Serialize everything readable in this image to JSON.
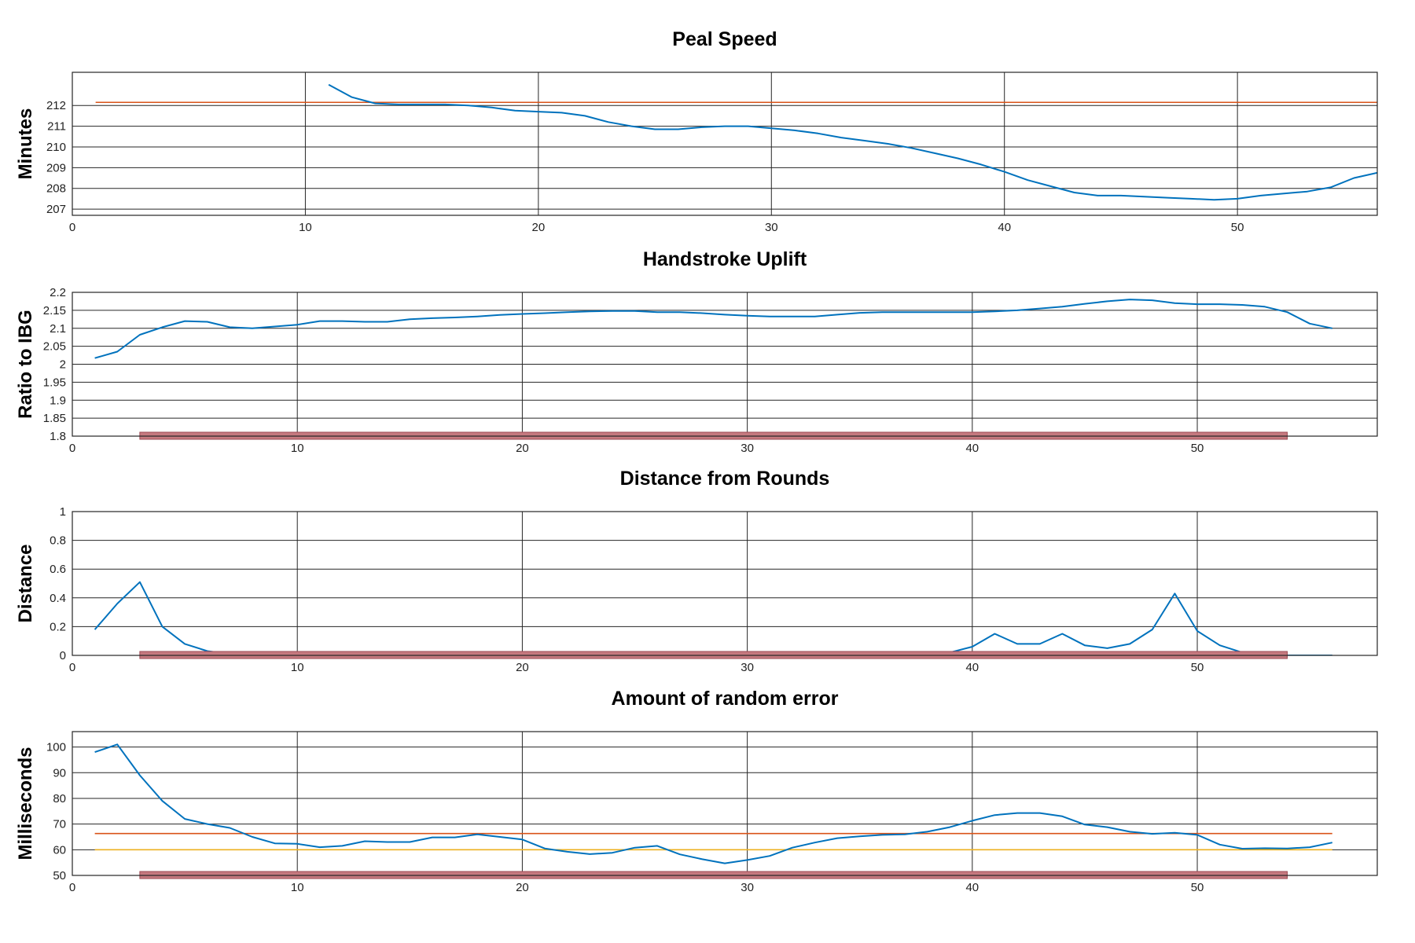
{
  "chart_data": [
    {
      "type": "line",
      "title": "Peal Speed",
      "xlabel": "",
      "ylabel": "Minutes",
      "xlim": [
        0,
        56
      ],
      "ylim": [
        206.7,
        213.6
      ],
      "xticks": [
        0,
        10,
        20,
        30,
        40,
        50
      ],
      "yticks": [
        207,
        208,
        209,
        210,
        211,
        212
      ],
      "xtick_labels": [
        "0",
        "10",
        "20",
        "30",
        "40",
        "50"
      ],
      "ytick_labels": [
        "207",
        "208",
        "209",
        "210",
        "211",
        "212"
      ],
      "grid": true,
      "colors": {
        "series": "#0072BD",
        "reference": "#D95319"
      },
      "reference_lines": [
        {
          "y": 212.15,
          "x": [
            1,
            56
          ],
          "color": "#D95319"
        }
      ],
      "series": [
        {
          "x": [
            11,
            12,
            13,
            14,
            15,
            16,
            17,
            18,
            19,
            20,
            21,
            22,
            23,
            24,
            25,
            26,
            27,
            28,
            29,
            30,
            31,
            32,
            33,
            34,
            35,
            36,
            37,
            38,
            39,
            40,
            41,
            42,
            43,
            44,
            45,
            46,
            47,
            48,
            49,
            50,
            51,
            52,
            53,
            54,
            55,
            56
          ],
          "y": [
            213.0,
            212.4,
            212.1,
            212.05,
            212.05,
            212.05,
            212.0,
            211.9,
            211.75,
            211.7,
            211.65,
            211.5,
            211.2,
            211.0,
            210.85,
            210.85,
            210.95,
            211.0,
            211.0,
            210.9,
            210.8,
            210.65,
            210.45,
            210.3,
            210.15,
            209.95,
            209.7,
            209.45,
            209.15,
            208.8,
            208.4,
            208.1,
            207.8,
            207.65,
            207.65,
            207.6,
            207.55,
            207.5,
            207.45,
            207.5,
            207.65,
            207.75,
            207.85,
            208.05,
            208.5,
            208.75
          ],
          "color": "#0072BD"
        }
      ]
    },
    {
      "type": "line",
      "title": "Handstroke Uplift",
      "xlabel": "",
      "ylabel": "Ratio to IBG",
      "xlim": [
        0,
        58
      ],
      "ylim": [
        1.8,
        2.2
      ],
      "xticks": [
        0,
        10,
        20,
        30,
        40,
        50
      ],
      "yticks": [
        1.8,
        1.85,
        1.9,
        1.95,
        2,
        2.05,
        2.1,
        2.15,
        2.2
      ],
      "xtick_labels": [
        "0",
        "10",
        "20",
        "30",
        "40",
        "50"
      ],
      "ytick_labels": [
        "1.8",
        "1.85",
        "1.9",
        "1.95",
        "2",
        "2.05",
        "2.1",
        "2.15",
        "2.2"
      ],
      "grid": true,
      "colors": {
        "series": "#0072BD",
        "baseline_bar": "#C5797F"
      },
      "baseline_bar": {
        "x": [
          3,
          54
        ],
        "color": "#C5797F"
      },
      "series": [
        {
          "x": [
            1,
            2,
            3,
            4,
            5,
            6,
            7,
            8,
            9,
            10,
            11,
            12,
            13,
            14,
            15,
            16,
            17,
            18,
            19,
            20,
            21,
            22,
            23,
            24,
            25,
            26,
            27,
            28,
            29,
            30,
            31,
            32,
            33,
            34,
            35,
            36,
            37,
            38,
            39,
            40,
            41,
            42,
            43,
            44,
            45,
            46,
            47,
            48,
            49,
            50,
            51,
            52,
            53,
            54,
            55,
            56
          ],
          "y": [
            2.017,
            2.035,
            2.082,
            2.103,
            2.12,
            2.118,
            2.103,
            2.1,
            2.105,
            2.11,
            2.12,
            2.12,
            2.118,
            2.118,
            2.125,
            2.128,
            2.13,
            2.133,
            2.137,
            2.14,
            2.142,
            2.145,
            2.147,
            2.148,
            2.148,
            2.145,
            2.145,
            2.142,
            2.138,
            2.135,
            2.133,
            2.133,
            2.133,
            2.138,
            2.143,
            2.145,
            2.145,
            2.145,
            2.145,
            2.145,
            2.147,
            2.15,
            2.155,
            2.16,
            2.168,
            2.175,
            2.18,
            2.178,
            2.17,
            2.167,
            2.167,
            2.165,
            2.16,
            2.145,
            2.113,
            2.1
          ],
          "color": "#0072BD"
        }
      ]
    },
    {
      "type": "line",
      "title": "Distance from Rounds",
      "xlabel": "",
      "ylabel": "Distance",
      "xlim": [
        0,
        58
      ],
      "ylim": [
        0,
        1
      ],
      "xticks": [
        0,
        10,
        20,
        30,
        40,
        50
      ],
      "yticks": [
        0,
        0.2,
        0.4,
        0.6,
        0.8,
        1
      ],
      "xtick_labels": [
        "0",
        "10",
        "20",
        "30",
        "40",
        "50"
      ],
      "ytick_labels": [
        "0",
        "0.2",
        "0.4",
        "0.6",
        "0.8",
        "1"
      ],
      "grid": true,
      "colors": {
        "series": "#0072BD",
        "baseline_bar": "#C5797F"
      },
      "baseline_bar": {
        "x": [
          3,
          54
        ],
        "color": "#C5797F"
      },
      "series": [
        {
          "x": [
            1,
            2,
            3,
            4,
            5,
            6,
            7,
            8,
            9,
            10,
            11,
            12,
            13,
            14,
            15,
            16,
            17,
            18,
            19,
            20,
            21,
            22,
            23,
            24,
            25,
            26,
            27,
            28,
            29,
            30,
            31,
            32,
            33,
            34,
            35,
            36,
            37,
            38,
            39,
            40,
            41,
            42,
            43,
            44,
            45,
            46,
            47,
            48,
            49,
            50,
            51,
            52,
            53,
            54,
            55,
            56
          ],
          "y": [
            0.18,
            0.36,
            0.51,
            0.2,
            0.08,
            0.03,
            0.01,
            0,
            0,
            0,
            0,
            0,
            0,
            0,
            0,
            0,
            0,
            0,
            0,
            0,
            0,
            0,
            0,
            0,
            0,
            0,
            0,
            0,
            0,
            0,
            0,
            0,
            0,
            0,
            0,
            0,
            0,
            0,
            0.02,
            0.06,
            0.15,
            0.08,
            0.08,
            0.15,
            0.07,
            0.05,
            0.08,
            0.18,
            0.43,
            0.17,
            0.07,
            0.02,
            0.01,
            0,
            0,
            0
          ],
          "color": "#0072BD"
        }
      ]
    },
    {
      "type": "line",
      "title": "Amount of random error",
      "xlabel": "",
      "ylabel": "Milliseconds",
      "xlim": [
        0,
        58
      ],
      "ylim": [
        50,
        106
      ],
      "xticks": [
        0,
        10,
        20,
        30,
        40,
        50
      ],
      "yticks": [
        50,
        60,
        70,
        80,
        90,
        100
      ],
      "xtick_labels": [
        "0",
        "10",
        "20",
        "30",
        "40",
        "50"
      ],
      "ytick_labels": [
        "50",
        "60",
        "70",
        "80",
        "90",
        "100"
      ],
      "grid": true,
      "colors": {
        "series": "#0072BD",
        "ref_upper": "#D95319",
        "ref_lower": "#EDB120",
        "baseline_bar": "#C5797F"
      },
      "baseline_bar": {
        "x": [
          3,
          54
        ],
        "color": "#C5797F"
      },
      "reference_lines": [
        {
          "y": 66.3,
          "x": [
            1,
            56
          ],
          "color": "#D95319"
        },
        {
          "y": 60.0,
          "x": [
            1,
            56
          ],
          "color": "#EDB120"
        }
      ],
      "series": [
        {
          "x": [
            1,
            2,
            3,
            4,
            5,
            6,
            7,
            8,
            9,
            10,
            11,
            12,
            13,
            14,
            15,
            16,
            17,
            18,
            19,
            20,
            21,
            22,
            23,
            24,
            25,
            26,
            27,
            28,
            29,
            30,
            31,
            32,
            33,
            34,
            35,
            36,
            37,
            38,
            39,
            40,
            41,
            42,
            43,
            44,
            45,
            46,
            47,
            48,
            49,
            50,
            51,
            52,
            53,
            54,
            55,
            56
          ],
          "y": [
            98,
            101,
            89,
            79,
            72,
            70,
            68.5,
            65,
            62.5,
            62.3,
            61,
            61.5,
            63.3,
            63,
            63,
            64.8,
            64.8,
            66,
            65,
            64,
            60.5,
            59.2,
            58.3,
            58.8,
            60.8,
            61.5,
            58.2,
            56.3,
            54.7,
            56,
            57.6,
            60.8,
            62.8,
            64.5,
            65.2,
            65.8,
            66,
            67,
            68.8,
            71.3,
            73.5,
            74.3,
            74.3,
            73,
            69.8,
            68.8,
            67,
            66.2,
            66.6,
            65.8,
            62,
            60.4,
            60.6,
            60.5,
            61,
            62.8
          ],
          "color": "#0072BD"
        }
      ]
    }
  ]
}
